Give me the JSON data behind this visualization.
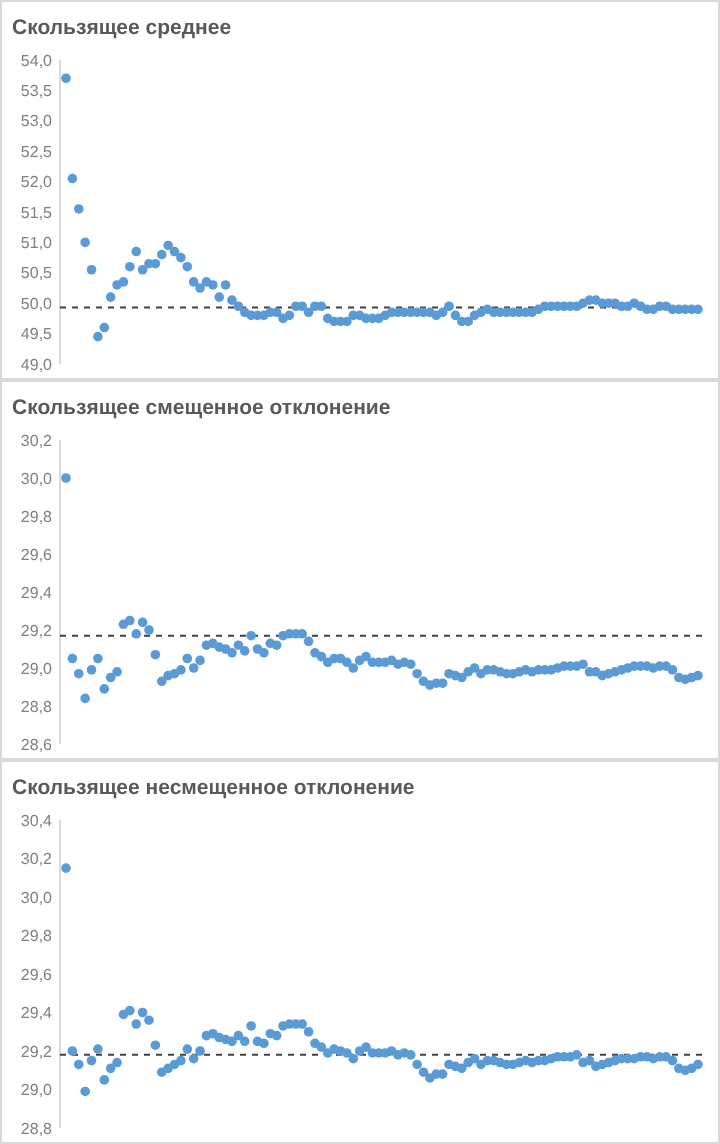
{
  "chart_data": [
    {
      "type": "scatter",
      "title": "Скользящее среднее",
      "marker": "circle",
      "grid": false,
      "tick_labels": "y",
      "categories": [
        null,
        null,
        null,
        null,
        null,
        null,
        null,
        null,
        null,
        null,
        null,
        null,
        null,
        null,
        null,
        null,
        null,
        null,
        null,
        null,
        null,
        null,
        null,
        null,
        null,
        null,
        null,
        null,
        null,
        null,
        null,
        null,
        null,
        null,
        null,
        null,
        null,
        null,
        null,
        null,
        null,
        null,
        null,
        null,
        null,
        null,
        null,
        null,
        null,
        null,
        null,
        null,
        null,
        null,
        null,
        null,
        null,
        null,
        null,
        null,
        null,
        null,
        null,
        null,
        null,
        null,
        null,
        null,
        null,
        null,
        null,
        null,
        null,
        null,
        null,
        null,
        null,
        null,
        null,
        null,
        null,
        null,
        null,
        null,
        null,
        null,
        null,
        null,
        null,
        null,
        null,
        null,
        null,
        null,
        null,
        null,
        null,
        null,
        null,
        null
      ],
      "ylim": [
        49.0,
        54.0
      ],
      "yticks": [
        {
          "value": 49.0,
          "label": "49,0"
        },
        {
          "value": 49.5,
          "label": "49,5"
        },
        {
          "value": 50.0,
          "label": "50,0"
        },
        {
          "value": 50.5,
          "label": "50,5"
        },
        {
          "value": 51.0,
          "label": "51,0"
        },
        {
          "value": 51.5,
          "label": "51,5"
        },
        {
          "value": 52.0,
          "label": "52,0"
        },
        {
          "value": 52.5,
          "label": "52,5"
        },
        {
          "value": 53.0,
          "label": "53,0"
        },
        {
          "value": 53.5,
          "label": "53,5"
        },
        {
          "value": 54.0,
          "label": "54,0"
        }
      ],
      "ref_lines": [
        {
          "axis": "y",
          "value": 49.93,
          "color": "#404040",
          "line_style": "dashed"
        }
      ],
      "series": [
        {
          "color": "#5b9bd5",
          "values": [
            53.7,
            52.05,
            51.55,
            51.0,
            50.55,
            49.45,
            49.6,
            50.1,
            50.3,
            50.35,
            50.6,
            50.85,
            50.55,
            50.65,
            50.65,
            50.8,
            50.95,
            50.85,
            50.75,
            50.6,
            50.35,
            50.25,
            50.35,
            50.3,
            50.1,
            50.3,
            50.05,
            49.95,
            49.85,
            49.8,
            49.8,
            49.8,
            49.85,
            49.85,
            49.75,
            49.8,
            49.95,
            49.95,
            49.85,
            49.95,
            49.95,
            49.75,
            49.7,
            49.7,
            49.7,
            49.8,
            49.8,
            49.75,
            49.75,
            49.75,
            49.8,
            49.85,
            49.85,
            49.85,
            49.85,
            49.85,
            49.85,
            49.85,
            49.8,
            49.85,
            49.95,
            49.8,
            49.7,
            49.7,
            49.8,
            49.85,
            49.9,
            49.85,
            49.85,
            49.85,
            49.85,
            49.85,
            49.85,
            49.85,
            49.9,
            49.95,
            49.95,
            49.95,
            49.95,
            49.95,
            49.95,
            50.0,
            50.05,
            50.05,
            50.0,
            50.0,
            50.0,
            49.95,
            49.95,
            50.0,
            49.95,
            49.9,
            49.9,
            49.95,
            49.95,
            49.9,
            49.9,
            49.9,
            49.9,
            49.9
          ]
        }
      ]
    },
    {
      "type": "scatter",
      "title": "Скользящее смещенное отклонение",
      "marker": "circle",
      "grid": false,
      "tick_labels": "y",
      "categories": [
        null,
        null,
        null,
        null,
        null,
        null,
        null,
        null,
        null,
        null,
        null,
        null,
        null,
        null,
        null,
        null,
        null,
        null,
        null,
        null,
        null,
        null,
        null,
        null,
        null,
        null,
        null,
        null,
        null,
        null,
        null,
        null,
        null,
        null,
        null,
        null,
        null,
        null,
        null,
        null,
        null,
        null,
        null,
        null,
        null,
        null,
        null,
        null,
        null,
        null,
        null,
        null,
        null,
        null,
        null,
        null,
        null,
        null,
        null,
        null,
        null,
        null,
        null,
        null,
        null,
        null,
        null,
        null,
        null,
        null,
        null,
        null,
        null,
        null,
        null,
        null,
        null,
        null,
        null,
        null,
        null,
        null,
        null,
        null,
        null,
        null,
        null,
        null,
        null,
        null,
        null,
        null,
        null,
        null,
        null,
        null,
        null,
        null,
        null,
        null
      ],
      "ylim": [
        28.6,
        30.2
      ],
      "yticks": [
        {
          "value": 28.6,
          "label": "28,6"
        },
        {
          "value": 28.8,
          "label": "28,8"
        },
        {
          "value": 29.0,
          "label": "29,0"
        },
        {
          "value": 29.2,
          "label": "29,2"
        },
        {
          "value": 29.4,
          "label": "29,4"
        },
        {
          "value": 29.6,
          "label": "29,6"
        },
        {
          "value": 29.8,
          "label": "29,8"
        },
        {
          "value": 30.0,
          "label": "30,0"
        },
        {
          "value": 30.2,
          "label": "30,2"
        }
      ],
      "ref_lines": [
        {
          "axis": "y",
          "value": 29.17,
          "color": "#404040",
          "line_style": "dashed"
        }
      ],
      "series": [
        {
          "color": "#5b9bd5",
          "values": [
            30.0,
            29.05,
            28.97,
            28.84,
            28.99,
            29.05,
            28.89,
            28.95,
            28.98,
            29.23,
            29.25,
            29.18,
            29.24,
            29.2,
            29.07,
            28.93,
            28.96,
            28.97,
            28.99,
            29.05,
            29.0,
            29.04,
            29.12,
            29.13,
            29.11,
            29.1,
            29.08,
            29.12,
            29.09,
            29.17,
            29.1,
            29.08,
            29.13,
            29.12,
            29.17,
            29.18,
            29.18,
            29.18,
            29.14,
            29.08,
            29.06,
            29.03,
            29.05,
            29.05,
            29.03,
            29.0,
            29.04,
            29.06,
            29.03,
            29.03,
            29.03,
            29.04,
            29.02,
            29.03,
            29.02,
            28.97,
            28.93,
            28.91,
            28.92,
            28.92,
            28.97,
            28.96,
            28.95,
            28.98,
            29.0,
            28.97,
            28.99,
            28.99,
            28.98,
            28.97,
            28.97,
            28.98,
            28.99,
            28.98,
            28.99,
            28.99,
            28.99,
            29.0,
            29.01,
            29.01,
            29.01,
            29.02,
            28.98,
            28.98,
            28.96,
            28.97,
            28.98,
            28.99,
            29.0,
            29.01,
            29.01,
            29.01,
            29.0,
            29.01,
            29.01,
            28.99,
            28.95,
            28.94,
            28.95,
            28.96
          ]
        }
      ]
    },
    {
      "type": "scatter",
      "title": "Скользящее несмещенное отклонение",
      "marker": "circle",
      "grid": false,
      "tick_labels": "y",
      "categories": [
        null,
        null,
        null,
        null,
        null,
        null,
        null,
        null,
        null,
        null,
        null,
        null,
        null,
        null,
        null,
        null,
        null,
        null,
        null,
        null,
        null,
        null,
        null,
        null,
        null,
        null,
        null,
        null,
        null,
        null,
        null,
        null,
        null,
        null,
        null,
        null,
        null,
        null,
        null,
        null,
        null,
        null,
        null,
        null,
        null,
        null,
        null,
        null,
        null,
        null,
        null,
        null,
        null,
        null,
        null,
        null,
        null,
        null,
        null,
        null,
        null,
        null,
        null,
        null,
        null,
        null,
        null,
        null,
        null,
        null,
        null,
        null,
        null,
        null,
        null,
        null,
        null,
        null,
        null,
        null,
        null,
        null,
        null,
        null,
        null,
        null,
        null,
        null,
        null,
        null,
        null,
        null,
        null,
        null,
        null,
        null,
        null,
        null,
        null,
        null
      ],
      "ylim": [
        28.8,
        30.4
      ],
      "yticks": [
        {
          "value": 28.8,
          "label": "28,8"
        },
        {
          "value": 29.0,
          "label": "29,0"
        },
        {
          "value": 29.2,
          "label": "29,2"
        },
        {
          "value": 29.4,
          "label": "29,4"
        },
        {
          "value": 29.6,
          "label": "29,6"
        },
        {
          "value": 29.8,
          "label": "29,8"
        },
        {
          "value": 30.0,
          "label": "30,0"
        },
        {
          "value": 30.2,
          "label": "30,2"
        },
        {
          "value": 30.4,
          "label": "30,4"
        }
      ],
      "ref_lines": [
        {
          "axis": "y",
          "value": 29.18,
          "color": "#404040",
          "line_style": "dashed"
        }
      ],
      "series": [
        {
          "color": "#5b9bd5",
          "values": [
            30.15,
            29.2,
            29.13,
            28.99,
            29.15,
            29.21,
            29.05,
            29.11,
            29.14,
            29.39,
            29.41,
            29.34,
            29.4,
            29.36,
            29.23,
            29.09,
            29.11,
            29.13,
            29.15,
            29.21,
            29.16,
            29.2,
            29.28,
            29.29,
            29.27,
            29.26,
            29.25,
            29.28,
            29.25,
            29.33,
            29.25,
            29.24,
            29.29,
            29.28,
            29.33,
            29.34,
            29.34,
            29.34,
            29.3,
            29.24,
            29.22,
            29.19,
            29.21,
            29.2,
            29.19,
            29.16,
            29.2,
            29.22,
            29.19,
            29.19,
            29.19,
            29.2,
            29.18,
            29.19,
            29.18,
            29.13,
            29.09,
            29.06,
            29.08,
            29.08,
            29.13,
            29.12,
            29.11,
            29.14,
            29.16,
            29.13,
            29.15,
            29.15,
            29.14,
            29.13,
            29.13,
            29.14,
            29.15,
            29.14,
            29.15,
            29.15,
            29.16,
            29.17,
            29.17,
            29.17,
            29.18,
            29.14,
            29.15,
            29.12,
            29.13,
            29.14,
            29.15,
            29.16,
            29.16,
            29.16,
            29.17,
            29.17,
            29.16,
            29.17,
            29.17,
            29.15,
            29.11,
            29.1,
            29.11,
            29.13
          ]
        }
      ]
    }
  ]
}
